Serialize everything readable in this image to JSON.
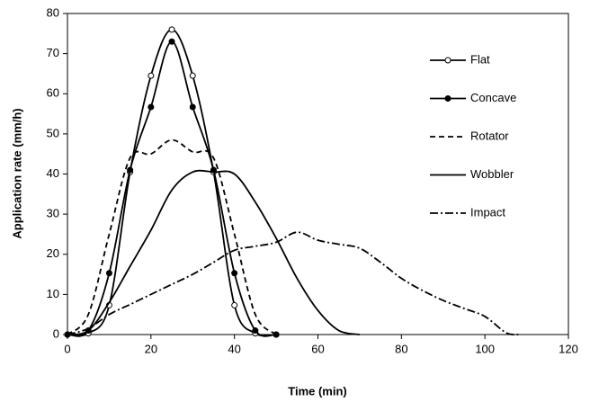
{
  "chart_data": {
    "type": "line",
    "x_label": "Time (min)",
    "y_label": "Application rate (mm/h)",
    "xlim": [
      0,
      120
    ],
    "ylim": [
      0,
      80
    ],
    "xticks": [
      0,
      20,
      40,
      60,
      80,
      100,
      120
    ],
    "yticks": [
      0,
      10,
      20,
      30,
      40,
      50,
      60,
      70,
      80
    ],
    "legend": "right",
    "series": [
      {
        "name": "Flat",
        "color": "#000000",
        "dash": "solid",
        "marker": "open",
        "x": [
          0,
          5,
          10,
          15,
          20,
          25,
          30,
          35,
          40,
          45,
          50
        ],
        "values": [
          0,
          0.3,
          7.3,
          40.5,
          64.5,
          76,
          64.5,
          40.5,
          7.3,
          0.3,
          0
        ]
      },
      {
        "name": "Concave",
        "color": "#000000",
        "dash": "solid",
        "marker": "filled",
        "x": [
          0,
          5,
          10,
          15,
          20,
          25,
          30,
          35,
          40,
          45,
          50
        ],
        "values": [
          0,
          1,
          15.3,
          41,
          56.7,
          73,
          56.7,
          41,
          15.3,
          1,
          0
        ]
      },
      {
        "name": "Rotator",
        "color": "#000000",
        "dash": "dashed",
        "marker": "none",
        "x": [
          0,
          5,
          10,
          15,
          20,
          25,
          30,
          35,
          40,
          45,
          50
        ],
        "values": [
          0,
          5,
          25,
          44,
          45,
          48.5,
          45.5,
          44,
          25,
          5,
          0
        ]
      },
      {
        "name": "Wobbler",
        "color": "#000000",
        "dash": "solid",
        "marker": "none",
        "x": [
          0,
          5,
          10,
          15,
          20,
          25,
          30,
          35,
          40,
          45,
          50,
          55,
          60,
          65,
          70
        ],
        "values": [
          0,
          1,
          8,
          17,
          26,
          36,
          40.5,
          40.5,
          40,
          33,
          24,
          14,
          6,
          1,
          0
        ]
      },
      {
        "name": "Impact",
        "color": "#000000",
        "dash": "dashdot",
        "marker": "none",
        "x": [
          0,
          5,
          10,
          15,
          20,
          25,
          30,
          35,
          40,
          45,
          50,
          55,
          60,
          65,
          70,
          75,
          80,
          85,
          90,
          95,
          100,
          105,
          108
        ],
        "values": [
          0,
          1.5,
          5,
          7.5,
          10,
          12.5,
          15,
          18,
          21,
          22,
          23,
          25.5,
          23.5,
          22.5,
          21.5,
          18,
          14,
          11,
          8.5,
          6.5,
          4.5,
          0.5,
          0
        ]
      }
    ]
  }
}
